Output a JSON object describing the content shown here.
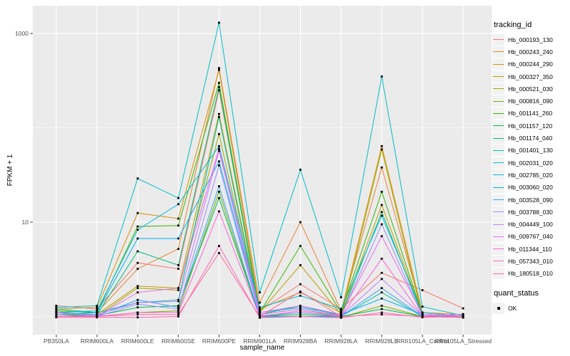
{
  "chart_data": {
    "type": "line",
    "title": "",
    "xlabel": "sample_name",
    "ylabel": "FPKM + 1",
    "y_scale": "log10",
    "y_tick_labels": [
      "1000",
      "10"
    ],
    "y_tick_values": [
      1000,
      10
    ],
    "y_minor_gridline_values": [
      100,
      1
    ],
    "ylim": [
      0.65,
      1950
    ],
    "grid": true,
    "panel_bg": "#EBEBEB",
    "gridline_color": "#FFFFFF",
    "tick_color": "#333333",
    "tick_label_color": "#4D4D4D",
    "point_color": "#000000",
    "point_shape": "filled-square",
    "legend_title": "tracking_id",
    "legend_position": "right",
    "categories": [
      "PB350LA",
      "RRIM600LA",
      "RRIM600LE",
      "RRIM600SE",
      "RRIM600PE",
      "RRIM901LA",
      "RRIM928BA",
      "RRIM928LA",
      "RRIM928LE",
      "RRII105LA_Control",
      "RRII105LA_Stressed"
    ],
    "series": [
      {
        "name": "Hb_000193_130",
        "color": "#F8766D",
        "values": [
          1.3,
          1.2,
          3.7,
          3.2,
          250,
          1.15,
          2.2,
          1.2,
          2.9,
          1.9,
          1.22
        ]
      },
      {
        "name": "Hb_000243_240",
        "color": "#EA8331",
        "values": [
          1.15,
          1.1,
          3.2,
          5.2,
          430,
          1.4,
          10,
          1.15,
          38,
          1.1,
          1.05
        ]
      },
      {
        "name": "Hb_000244_290",
        "color": "#D89000",
        "values": [
          1.2,
          1.25,
          12.5,
          10.9,
          410,
          1.2,
          1.8,
          1.1,
          64,
          1.1,
          1.0
        ]
      },
      {
        "name": "Hb_000327_350",
        "color": "#C09B00",
        "values": [
          1.1,
          1.05,
          2.1,
          2.0,
          140,
          1.1,
          3.5,
          1.05,
          15.2,
          1.05,
          1.0
        ]
      },
      {
        "name": "Hb_000521_030",
        "color": "#A3A500",
        "values": [
          1.05,
          1.0,
          2.0,
          1.9,
          86,
          1.05,
          1.2,
          1.0,
          59,
          1.0,
          0.98
        ]
      },
      {
        "name": "Hb_000816_090",
        "color": "#7CAE00",
        "values": [
          1.0,
          1.0,
          1.1,
          1.15,
          21,
          0.98,
          1.0,
          0.98,
          1.3,
          1.0,
          0.98
        ]
      },
      {
        "name": "Hb_001141_260",
        "color": "#39B600",
        "values": [
          1.15,
          1.1,
          9.0,
          9.2,
          300,
          1.1,
          5.6,
          1.1,
          21,
          1.05,
          1.0
        ]
      },
      {
        "name": "Hb_001157_120",
        "color": "#00BB4E",
        "values": [
          1.05,
          1.02,
          1.25,
          1.3,
          18,
          1.0,
          1.05,
          1.0,
          1.2,
          1.0,
          0.98
        ]
      },
      {
        "name": "Hb_001174_040",
        "color": "#00BF7D",
        "values": [
          1.1,
          1.05,
          4.9,
          3.5,
          270,
          1.05,
          1.3,
          1.02,
          12.8,
          1.02,
          1.0
        ]
      },
      {
        "name": "Hb_001401_130",
        "color": "#00C1A3",
        "values": [
          1.2,
          1.1,
          1.4,
          1.5,
          130,
          1.0,
          1.1,
          1.0,
          1.8,
          1.0,
          1.0
        ]
      },
      {
        "name": "Hb_002031_020",
        "color": "#00BFC4",
        "values": [
          1.25,
          1.3,
          29,
          18,
          1300,
          1.8,
          36,
          1.6,
          350,
          1.27,
          1.02
        ]
      },
      {
        "name": "Hb_002785_020",
        "color": "#00BAE0",
        "values": [
          1.1,
          1.15,
          8.3,
          15.5,
          64,
          1.25,
          1.66,
          1.2,
          11.7,
          1.1,
          1.0
        ]
      },
      {
        "name": "Hb_003060_020",
        "color": "#00B0F6",
        "values": [
          1.05,
          1.1,
          6.7,
          6.7,
          44,
          1.1,
          1.25,
          1.05,
          1.55,
          1.05,
          1.0
        ]
      },
      {
        "name": "Hb_003528_090",
        "color": "#35A2FF",
        "values": [
          1.0,
          1.02,
          1.5,
          1.25,
          24,
          1.0,
          1.0,
          1.0,
          2.0,
          1.0,
          0.98
        ]
      },
      {
        "name": "Hb_003788_030",
        "color": "#9590FF",
        "values": [
          1.0,
          1.0,
          1.35,
          1.2,
          40,
          1.02,
          1.1,
          1.0,
          9.5,
          1.0,
          0.98
        ]
      },
      {
        "name": "Hb_004449_100",
        "color": "#C77CFF",
        "values": [
          1.05,
          1.05,
          1.4,
          1.45,
          57,
          1.05,
          1.2,
          1.02,
          2.5,
          1.02,
          1.0
        ]
      },
      {
        "name": "Hb_009767_040",
        "color": "#E76BF3",
        "values": [
          1.1,
          1.0,
          1.8,
          2.0,
          60,
          1.1,
          1.3,
          1.05,
          7.1,
          1.05,
          1.0
        ]
      },
      {
        "name": "Hb_011344_110",
        "color": "#FA62DB",
        "values": [
          1.0,
          1.0,
          1.1,
          1.1,
          13,
          1.0,
          1.15,
          1.0,
          4.1,
          1.0,
          1.06
        ]
      },
      {
        "name": "Hb_057343_010",
        "color": "#FF62BC",
        "values": [
          0.98,
          0.98,
          0.98,
          1.0,
          5.6,
          0.97,
          1.0,
          0.97,
          1.1,
          0.98,
          1.0
        ]
      },
      {
        "name": "Hb_180518_010",
        "color": "#FF6A98",
        "values": [
          1.0,
          1.0,
          1.05,
          1.05,
          4.7,
          1.0,
          1.84,
          1.0,
          1.05,
          1.0,
          0.98
        ]
      }
    ],
    "quant_status": {
      "title": "quant_status",
      "items": [
        {
          "label": "OK",
          "shape": "filled-square",
          "color": "#000000"
        }
      ]
    }
  }
}
